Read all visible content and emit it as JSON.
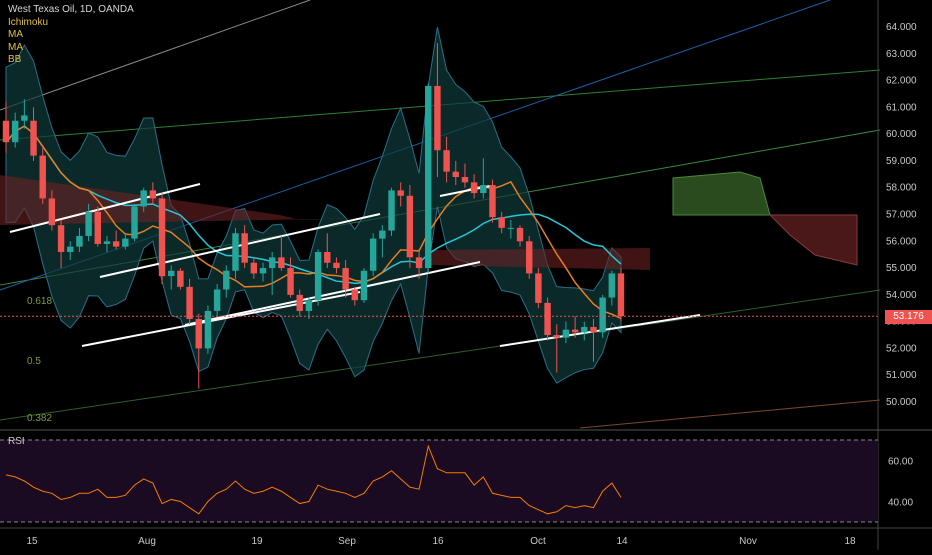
{
  "legend": {
    "title": "West Texas Oil, 1D, OANDA",
    "indicators": [
      "Ichimoku",
      "MA",
      "MA",
      "BB"
    ]
  },
  "colors": {
    "background": "#000000",
    "bull": "#26a69a",
    "bear": "#ef5350",
    "axis_text": "#c9c9c9",
    "rsi_line": "#f57c00",
    "rsi_bg": "#1a0a22",
    "cloud_bull": "#3b6b2a",
    "cloud_bear": "#6a2222",
    "bb_fill": "#0f3a3a",
    "ma_orange": "#e67e22",
    "ma_teal": "#26c6da",
    "current_price_line": "#ef5350"
  },
  "price_axis": {
    "ticks": [
      "64.000",
      "63.000",
      "62.000",
      "61.000",
      "60.000",
      "59.000",
      "58.000",
      "57.000",
      "56.000",
      "55.000",
      "54.000",
      "53.000",
      "52.000",
      "51.000",
      "50.000"
    ],
    "current_price": "53.176"
  },
  "rsi_axis": {
    "label": "RSI",
    "ticks": [
      "60.00",
      "40.00"
    ]
  },
  "time_axis": {
    "ticks": [
      "15",
      "Aug",
      "19",
      "Sep",
      "16",
      "Oct",
      "14",
      "Nov",
      "18"
    ]
  },
  "fib_labels": [
    "0.618",
    "0.5",
    "0.382"
  ],
  "chart_data": {
    "type": "candlestick",
    "symbol": "West Texas Oil",
    "interval": "1D",
    "source": "OANDA",
    "ylim": [
      49.5,
      64.7
    ],
    "candles": [
      {
        "o": 60.5,
        "h": 61.2,
        "l": 59.3,
        "c": 59.7
      },
      {
        "o": 59.7,
        "h": 60.8,
        "l": 59.5,
        "c": 60.5
      },
      {
        "o": 60.5,
        "h": 61.3,
        "l": 60.2,
        "c": 60.7
      },
      {
        "o": 60.5,
        "h": 61.0,
        "l": 59.0,
        "c": 59.2
      },
      {
        "o": 59.2,
        "h": 59.6,
        "l": 57.4,
        "c": 57.6
      },
      {
        "o": 57.6,
        "h": 57.9,
        "l": 56.4,
        "c": 56.6
      },
      {
        "o": 56.6,
        "h": 56.8,
        "l": 55.0,
        "c": 55.6
      },
      {
        "o": 55.6,
        "h": 56.0,
        "l": 55.3,
        "c": 55.8
      },
      {
        "o": 55.8,
        "h": 56.5,
        "l": 55.6,
        "c": 56.2
      },
      {
        "o": 56.2,
        "h": 57.4,
        "l": 56.0,
        "c": 57.1
      },
      {
        "o": 57.1,
        "h": 57.3,
        "l": 55.8,
        "c": 55.9
      },
      {
        "o": 55.9,
        "h": 56.2,
        "l": 55.6,
        "c": 56.0
      },
      {
        "o": 56.0,
        "h": 56.4,
        "l": 55.7,
        "c": 55.8
      },
      {
        "o": 55.8,
        "h": 56.3,
        "l": 55.7,
        "c": 56.1
      },
      {
        "o": 56.1,
        "h": 57.4,
        "l": 56.0,
        "c": 57.3
      },
      {
        "o": 57.3,
        "h": 58.0,
        "l": 57.1,
        "c": 57.9
      },
      {
        "o": 57.9,
        "h": 58.2,
        "l": 57.4,
        "c": 57.6
      },
      {
        "o": 57.6,
        "h": 57.8,
        "l": 54.4,
        "c": 54.7
      },
      {
        "o": 54.7,
        "h": 55.1,
        "l": 54.2,
        "c": 54.9
      },
      {
        "o": 54.9,
        "h": 55.0,
        "l": 54.2,
        "c": 54.3
      },
      {
        "o": 54.3,
        "h": 54.6,
        "l": 52.9,
        "c": 53.1
      },
      {
        "o": 53.1,
        "h": 53.3,
        "l": 50.5,
        "c": 52.0
      },
      {
        "o": 52.0,
        "h": 53.6,
        "l": 51.8,
        "c": 53.4
      },
      {
        "o": 53.4,
        "h": 54.4,
        "l": 53.2,
        "c": 54.2
      },
      {
        "o": 54.2,
        "h": 55.1,
        "l": 53.9,
        "c": 54.9
      },
      {
        "o": 54.9,
        "h": 56.5,
        "l": 54.6,
        "c": 56.3
      },
      {
        "o": 56.3,
        "h": 56.6,
        "l": 55.0,
        "c": 55.2
      },
      {
        "o": 55.2,
        "h": 55.4,
        "l": 54.6,
        "c": 54.8
      },
      {
        "o": 54.8,
        "h": 55.2,
        "l": 54.5,
        "c": 55.0
      },
      {
        "o": 55.0,
        "h": 55.6,
        "l": 54.0,
        "c": 55.4
      },
      {
        "o": 55.4,
        "h": 56.2,
        "l": 54.9,
        "c": 55.0
      },
      {
        "o": 55.0,
        "h": 55.4,
        "l": 53.9,
        "c": 54.0
      },
      {
        "o": 54.0,
        "h": 54.2,
        "l": 53.2,
        "c": 53.4
      },
      {
        "o": 53.4,
        "h": 53.9,
        "l": 53.1,
        "c": 53.8
      },
      {
        "o": 53.8,
        "h": 55.7,
        "l": 53.6,
        "c": 55.6
      },
      {
        "o": 55.6,
        "h": 56.3,
        "l": 55.0,
        "c": 55.2
      },
      {
        "o": 55.2,
        "h": 55.4,
        "l": 54.8,
        "c": 55.0
      },
      {
        "o": 55.0,
        "h": 55.3,
        "l": 53.9,
        "c": 54.2
      },
      {
        "o": 54.2,
        "h": 54.3,
        "l": 53.6,
        "c": 53.8
      },
      {
        "o": 53.8,
        "h": 55.0,
        "l": 53.7,
        "c": 54.9
      },
      {
        "o": 54.9,
        "h": 56.3,
        "l": 54.7,
        "c": 56.1
      },
      {
        "o": 56.1,
        "h": 56.6,
        "l": 55.4,
        "c": 56.4
      },
      {
        "o": 56.4,
        "h": 58.0,
        "l": 56.2,
        "c": 57.9
      },
      {
        "o": 57.9,
        "h": 58.2,
        "l": 57.3,
        "c": 57.7
      },
      {
        "o": 57.7,
        "h": 58.1,
        "l": 55.0,
        "c": 55.4
      },
      {
        "o": 55.4,
        "h": 55.7,
        "l": 54.6,
        "c": 55.0
      },
      {
        "o": 55.0,
        "h": 61.9,
        "l": 54.8,
        "c": 61.8
      },
      {
        "o": 61.8,
        "h": 63.4,
        "l": 58.4,
        "c": 59.4
      },
      {
        "o": 59.4,
        "h": 59.9,
        "l": 58.2,
        "c": 58.6
      },
      {
        "o": 58.6,
        "h": 59.0,
        "l": 58.1,
        "c": 58.4
      },
      {
        "o": 58.4,
        "h": 58.9,
        "l": 58.0,
        "c": 58.2
      },
      {
        "o": 58.2,
        "h": 58.5,
        "l": 57.6,
        "c": 57.8
      },
      {
        "o": 57.8,
        "h": 59.1,
        "l": 57.6,
        "c": 58.1
      },
      {
        "o": 58.1,
        "h": 58.3,
        "l": 56.7,
        "c": 56.9
      },
      {
        "o": 56.9,
        "h": 57.1,
        "l": 56.3,
        "c": 56.5
      },
      {
        "o": 56.5,
        "h": 56.8,
        "l": 56.1,
        "c": 56.5
      },
      {
        "o": 56.5,
        "h": 56.6,
        "l": 55.8,
        "c": 56.0
      },
      {
        "o": 56.0,
        "h": 56.2,
        "l": 54.6,
        "c": 54.8
      },
      {
        "o": 54.8,
        "h": 55.0,
        "l": 53.5,
        "c": 53.7
      },
      {
        "o": 53.7,
        "h": 53.9,
        "l": 52.3,
        "c": 52.5
      },
      {
        "o": 52.5,
        "h": 52.9,
        "l": 51.1,
        "c": 52.4
      },
      {
        "o": 52.4,
        "h": 53.0,
        "l": 52.2,
        "c": 52.7
      },
      {
        "o": 52.7,
        "h": 53.2,
        "l": 52.4,
        "c": 52.6
      },
      {
        "o": 52.6,
        "h": 53.0,
        "l": 52.3,
        "c": 52.8
      },
      {
        "o": 52.8,
        "h": 53.1,
        "l": 51.5,
        "c": 52.6
      },
      {
        "o": 52.6,
        "h": 54.0,
        "l": 52.4,
        "c": 53.9
      },
      {
        "o": 53.9,
        "h": 54.9,
        "l": 53.6,
        "c": 54.8
      },
      {
        "o": 54.8,
        "h": 55.0,
        "l": 53.0,
        "c": 53.2
      }
    ],
    "rsi": [
      53,
      52,
      50,
      47,
      45,
      44,
      41,
      42,
      44,
      44,
      46,
      42,
      42,
      43,
      48,
      51,
      49,
      39,
      41,
      40,
      37,
      34,
      40,
      44,
      46,
      50,
      46,
      44,
      45,
      47,
      45,
      42,
      39,
      40,
      48,
      46,
      45,
      44,
      42,
      44,
      50,
      52,
      55,
      51,
      47,
      46,
      67,
      56,
      54,
      54,
      54,
      48,
      52,
      44,
      43,
      42,
      42,
      38,
      36,
      34,
      35,
      38,
      37,
      38,
      37,
      45,
      49,
      42
    ],
    "rsi_levels": [
      70,
      30
    ]
  }
}
